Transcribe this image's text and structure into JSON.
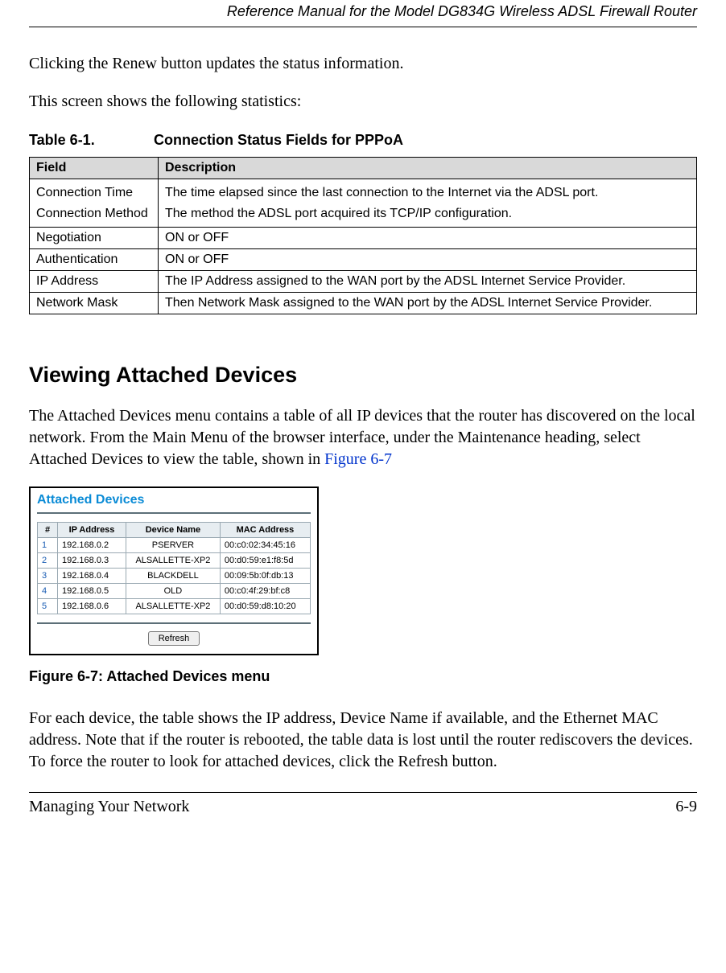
{
  "header": {
    "title": "Reference Manual for the Model DG834G Wireless ADSL Firewall Router"
  },
  "paragraphs": {
    "p1": "Clicking the Renew button updates the status information.",
    "p2": "This screen shows the following statistics:",
    "p3a": "The Attached Devices menu contains a table of all IP devices that the router has discovered on the local network. From the Main Menu of the browser interface, under the Maintenance heading, select Attached Devices to view the table, shown in ",
    "p3_link": "Figure 6-7",
    "p4": "For each device, the table shows the IP address, Device Name if available, and the Ethernet MAC address. Note that if the router is rebooted, the table data is lost until the router rediscovers the devices. To force the router to look for attached devices, click the Refresh button."
  },
  "table61": {
    "caption_num": "Table 6-1.",
    "caption_title": "Connection Status Fields for PPPoA",
    "columns": [
      "Field",
      "Description"
    ],
    "rows": [
      {
        "field": "Connection Time\nConnection Method",
        "desc": "The time elapsed since the last connection to the Internet via the ADSL port.\nThe method the ADSL port acquired its TCP/IP configuration."
      },
      {
        "field": "Negotiation",
        "desc": "ON or OFF"
      },
      {
        "field": "Authentication",
        "desc": "ON or OFF"
      },
      {
        "field": "IP Address",
        "desc": "The IP Address assigned to the WAN port by the ADSL Internet Service Provider."
      },
      {
        "field": "Network Mask",
        "desc": "Then Network Mask assigned to the WAN port by the ADSL Internet Service Provider."
      }
    ],
    "col_widths": [
      "160px",
      "auto"
    ],
    "header_bg": "#d9d9d9",
    "border_color": "#000000"
  },
  "section": {
    "heading": "Viewing Attached Devices"
  },
  "figure": {
    "panel_title": "Attached Devices",
    "columns": [
      "#",
      "IP Address",
      "Device Name",
      "MAC Address"
    ],
    "rows": [
      {
        "n": "1",
        "ip": "192.168.0.2",
        "name": "PSERVER",
        "mac": "00:c0:02:34:45:16"
      },
      {
        "n": "2",
        "ip": "192.168.0.3",
        "name": "ALSALLETTE-XP2",
        "mac": "00:d0:59:e1:f8:5d"
      },
      {
        "n": "3",
        "ip": "192.168.0.4",
        "name": "BLACKDELL",
        "mac": "00:09:5b:0f:db:13"
      },
      {
        "n": "4",
        "ip": "192.168.0.5",
        "name": "OLD",
        "mac": "00:c0:4f:29:bf:c8"
      },
      {
        "n": "5",
        "ip": "192.168.0.6",
        "name": "ALSALLETTE-XP2",
        "mac": "00:d0:59:d8:10:20"
      }
    ],
    "refresh_label": "Refresh",
    "caption": "Figure 6-7:  Attached Devices menu",
    "title_color": "#0a8bd6",
    "hr_color": "#5c6f78",
    "border_color": "#9aa9b2",
    "header_bg": "#e7edf1",
    "link_color": "#1a5db4"
  },
  "footer": {
    "left": "Managing Your Network",
    "right": "6-9"
  }
}
